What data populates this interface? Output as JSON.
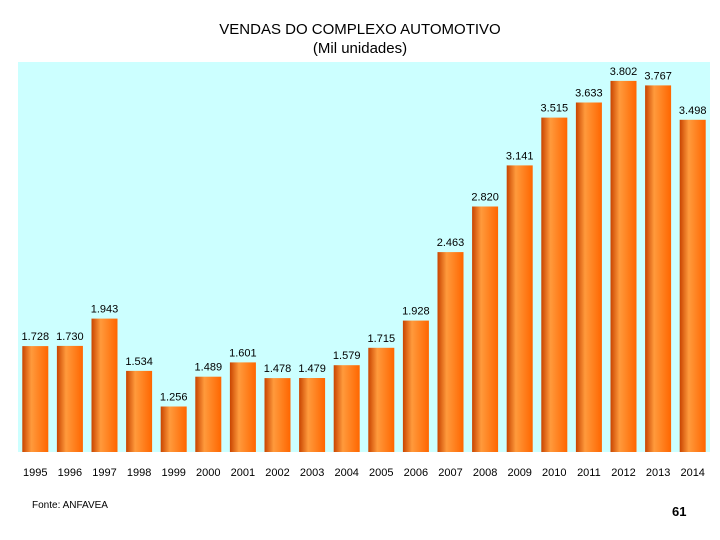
{
  "chart_data": {
    "type": "bar",
    "title": "VENDAS DO COMPLEXO AUTOMOTIVO",
    "subtitle": "(Mil unidades)",
    "xlabel": "",
    "ylabel": "",
    "categories": [
      "1995",
      "1996",
      "1997",
      "1998",
      "1999",
      "2000",
      "2001",
      "2002",
      "2003",
      "2004",
      "2005",
      "2006",
      "2007",
      "2008",
      "2009",
      "2010",
      "2011",
      "2012",
      "2013",
      "2014"
    ],
    "values": [
      1728,
      1730,
      1943,
      1534,
      1256,
      1489,
      1601,
      1478,
      1479,
      1579,
      1715,
      1928,
      2463,
      2820,
      3141,
      3515,
      3633,
      3802,
      3767,
      3498
    ],
    "value_labels": [
      "1.728",
      "1.730",
      "1.943",
      "1.534",
      "1.256",
      "1.489",
      "1.601",
      "1.478",
      "1.479",
      "1.579",
      "1.715",
      "1.928",
      "2.463",
      "2.820",
      "3.141",
      "3.515",
      "3.633",
      "3.802",
      "3.767",
      "3.498"
    ],
    "ylim": [
      900,
      3950
    ],
    "grid": false,
    "legend": "none",
    "colors": {
      "plot_background": "#ccffff",
      "bar_fill": "#ff6600",
      "bar_dark": "#c84400",
      "bar_light": "#ff9a3c"
    }
  },
  "footer": {
    "source": "Fonte: ANFAVEA",
    "page_number": "61"
  }
}
